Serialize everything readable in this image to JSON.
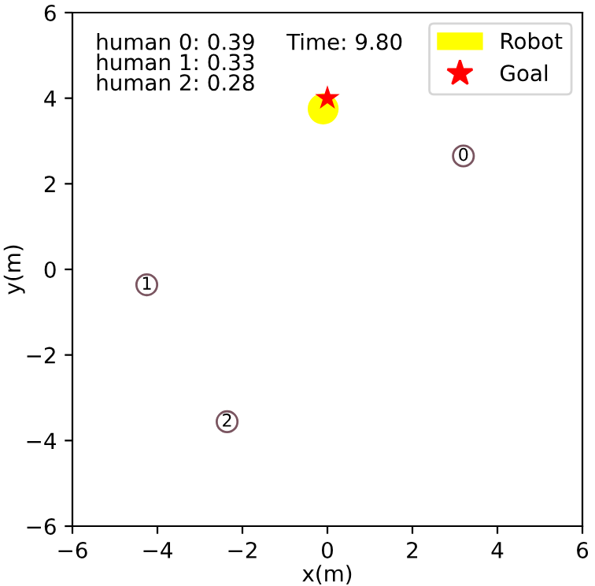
{
  "chart_data": {
    "type": "scatter",
    "xlabel": "x(m)",
    "ylabel": "y(m)",
    "xlim": [
      -6,
      6
    ],
    "ylim": [
      -6,
      6
    ],
    "xticks": [
      -6,
      -4,
      -2,
      0,
      2,
      4,
      6
    ],
    "yticks": [
      -6,
      -4,
      -2,
      0,
      2,
      4,
      6
    ],
    "series": [
      {
        "color": "#ffff00",
        "marker": "circle",
        "x": [
          -0.1
        ],
        "values": [
          3.75
        ],
        "name": "Robot"
      },
      {
        "color": "#ff0000",
        "marker": "star",
        "x": [
          0.0
        ],
        "values": [
          4.0
        ],
        "name": "Goal"
      },
      {
        "color": "#7a5560",
        "marker": "circle",
        "x": [
          3.2,
          -4.25,
          -2.36
        ],
        "values": [
          2.65,
          -0.36,
          -3.56
        ]
      }
    ],
    "annotations": [
      "human 0: 0.39\nhuman 1: 0.33\nhuman 2: 0.28",
      "Time: 9.80",
      {
        "text": "0",
        "x": 3.2,
        "y": 2.65
      },
      {
        "text": "1",
        "x": -4.25,
        "y": -0.36
      },
      {
        "text": "2",
        "x": -2.36,
        "y": -3.56
      }
    ],
    "legend": "top right",
    "grid": false
  }
}
